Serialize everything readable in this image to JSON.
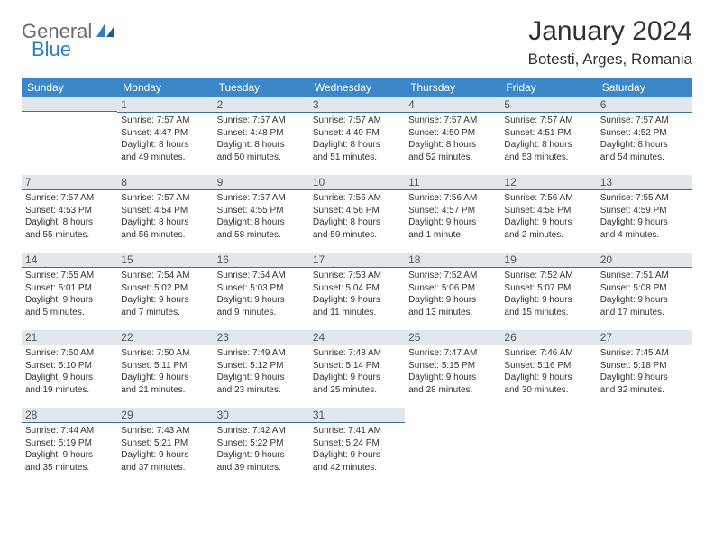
{
  "logo": {
    "text1": "General",
    "text2": "Blue"
  },
  "title": "January 2024",
  "location": "Botesti, Arges, Romania",
  "colors": {
    "header_bg": "#3b87c8",
    "header_fg": "#ffffff",
    "daynum_bg": "#e1e7ea",
    "daynum_border": "#3b6fa0",
    "logo_gray": "#6b6b6b",
    "logo_blue": "#2f7dc0"
  },
  "weekdays": [
    "Sunday",
    "Monday",
    "Tuesday",
    "Wednesday",
    "Thursday",
    "Friday",
    "Saturday"
  ],
  "weeks": [
    [
      {
        "day": "",
        "lines": []
      },
      {
        "day": "1",
        "lines": [
          "Sunrise: 7:57 AM",
          "Sunset: 4:47 PM",
          "Daylight: 8 hours",
          "and 49 minutes."
        ]
      },
      {
        "day": "2",
        "lines": [
          "Sunrise: 7:57 AM",
          "Sunset: 4:48 PM",
          "Daylight: 8 hours",
          "and 50 minutes."
        ]
      },
      {
        "day": "3",
        "lines": [
          "Sunrise: 7:57 AM",
          "Sunset: 4:49 PM",
          "Daylight: 8 hours",
          "and 51 minutes."
        ]
      },
      {
        "day": "4",
        "lines": [
          "Sunrise: 7:57 AM",
          "Sunset: 4:50 PM",
          "Daylight: 8 hours",
          "and 52 minutes."
        ]
      },
      {
        "day": "5",
        "lines": [
          "Sunrise: 7:57 AM",
          "Sunset: 4:51 PM",
          "Daylight: 8 hours",
          "and 53 minutes."
        ]
      },
      {
        "day": "6",
        "lines": [
          "Sunrise: 7:57 AM",
          "Sunset: 4:52 PM",
          "Daylight: 8 hours",
          "and 54 minutes."
        ]
      }
    ],
    [
      {
        "day": "7",
        "lines": [
          "Sunrise: 7:57 AM",
          "Sunset: 4:53 PM",
          "Daylight: 8 hours",
          "and 55 minutes."
        ]
      },
      {
        "day": "8",
        "lines": [
          "Sunrise: 7:57 AM",
          "Sunset: 4:54 PM",
          "Daylight: 8 hours",
          "and 56 minutes."
        ]
      },
      {
        "day": "9",
        "lines": [
          "Sunrise: 7:57 AM",
          "Sunset: 4:55 PM",
          "Daylight: 8 hours",
          "and 58 minutes."
        ]
      },
      {
        "day": "10",
        "lines": [
          "Sunrise: 7:56 AM",
          "Sunset: 4:56 PM",
          "Daylight: 8 hours",
          "and 59 minutes."
        ]
      },
      {
        "day": "11",
        "lines": [
          "Sunrise: 7:56 AM",
          "Sunset: 4:57 PM",
          "Daylight: 9 hours",
          "and 1 minute."
        ]
      },
      {
        "day": "12",
        "lines": [
          "Sunrise: 7:56 AM",
          "Sunset: 4:58 PM",
          "Daylight: 9 hours",
          "and 2 minutes."
        ]
      },
      {
        "day": "13",
        "lines": [
          "Sunrise: 7:55 AM",
          "Sunset: 4:59 PM",
          "Daylight: 9 hours",
          "and 4 minutes."
        ]
      }
    ],
    [
      {
        "day": "14",
        "lines": [
          "Sunrise: 7:55 AM",
          "Sunset: 5:01 PM",
          "Daylight: 9 hours",
          "and 5 minutes."
        ]
      },
      {
        "day": "15",
        "lines": [
          "Sunrise: 7:54 AM",
          "Sunset: 5:02 PM",
          "Daylight: 9 hours",
          "and 7 minutes."
        ]
      },
      {
        "day": "16",
        "lines": [
          "Sunrise: 7:54 AM",
          "Sunset: 5:03 PM",
          "Daylight: 9 hours",
          "and 9 minutes."
        ]
      },
      {
        "day": "17",
        "lines": [
          "Sunrise: 7:53 AM",
          "Sunset: 5:04 PM",
          "Daylight: 9 hours",
          "and 11 minutes."
        ]
      },
      {
        "day": "18",
        "lines": [
          "Sunrise: 7:52 AM",
          "Sunset: 5:06 PM",
          "Daylight: 9 hours",
          "and 13 minutes."
        ]
      },
      {
        "day": "19",
        "lines": [
          "Sunrise: 7:52 AM",
          "Sunset: 5:07 PM",
          "Daylight: 9 hours",
          "and 15 minutes."
        ]
      },
      {
        "day": "20",
        "lines": [
          "Sunrise: 7:51 AM",
          "Sunset: 5:08 PM",
          "Daylight: 9 hours",
          "and 17 minutes."
        ]
      }
    ],
    [
      {
        "day": "21",
        "lines": [
          "Sunrise: 7:50 AM",
          "Sunset: 5:10 PM",
          "Daylight: 9 hours",
          "and 19 minutes."
        ]
      },
      {
        "day": "22",
        "lines": [
          "Sunrise: 7:50 AM",
          "Sunset: 5:11 PM",
          "Daylight: 9 hours",
          "and 21 minutes."
        ]
      },
      {
        "day": "23",
        "lines": [
          "Sunrise: 7:49 AM",
          "Sunset: 5:12 PM",
          "Daylight: 9 hours",
          "and 23 minutes."
        ]
      },
      {
        "day": "24",
        "lines": [
          "Sunrise: 7:48 AM",
          "Sunset: 5:14 PM",
          "Daylight: 9 hours",
          "and 25 minutes."
        ]
      },
      {
        "day": "25",
        "lines": [
          "Sunrise: 7:47 AM",
          "Sunset: 5:15 PM",
          "Daylight: 9 hours",
          "and 28 minutes."
        ]
      },
      {
        "day": "26",
        "lines": [
          "Sunrise: 7:46 AM",
          "Sunset: 5:16 PM",
          "Daylight: 9 hours",
          "and 30 minutes."
        ]
      },
      {
        "day": "27",
        "lines": [
          "Sunrise: 7:45 AM",
          "Sunset: 5:18 PM",
          "Daylight: 9 hours",
          "and 32 minutes."
        ]
      }
    ],
    [
      {
        "day": "28",
        "lines": [
          "Sunrise: 7:44 AM",
          "Sunset: 5:19 PM",
          "Daylight: 9 hours",
          "and 35 minutes."
        ]
      },
      {
        "day": "29",
        "lines": [
          "Sunrise: 7:43 AM",
          "Sunset: 5:21 PM",
          "Daylight: 9 hours",
          "and 37 minutes."
        ]
      },
      {
        "day": "30",
        "lines": [
          "Sunrise: 7:42 AM",
          "Sunset: 5:22 PM",
          "Daylight: 9 hours",
          "and 39 minutes."
        ]
      },
      {
        "day": "31",
        "lines": [
          "Sunrise: 7:41 AM",
          "Sunset: 5:24 PM",
          "Daylight: 9 hours",
          "and 42 minutes."
        ]
      },
      {
        "day": "",
        "lines": []
      },
      {
        "day": "",
        "lines": []
      },
      {
        "day": "",
        "lines": []
      }
    ]
  ]
}
